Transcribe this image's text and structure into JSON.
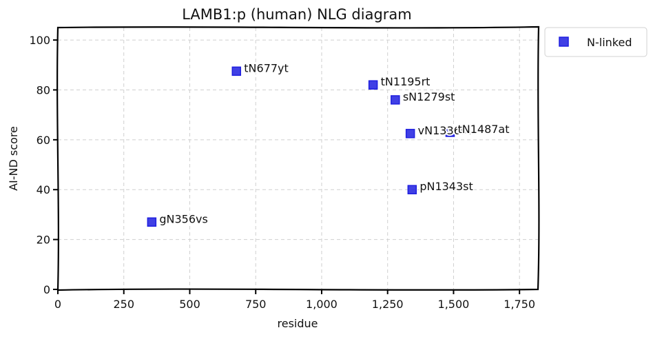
{
  "chart_data": {
    "type": "scatter",
    "title": "LAMB1:p (human) NLG diagram",
    "xlabel": "residue",
    "ylabel": "AI-ND score",
    "xlim": [
      0,
      1820
    ],
    "ylim": [
      0,
      105
    ],
    "x_ticks": [
      0,
      250,
      500,
      750,
      1000,
      1250,
      1500,
      1750
    ],
    "x_tick_labels": [
      "0",
      "250",
      "500",
      "750",
      "1,000",
      "1,250",
      "1,500",
      "1,750"
    ],
    "y_ticks": [
      0,
      20,
      40,
      60,
      80,
      100
    ],
    "y_tick_labels": [
      "0",
      "20",
      "40",
      "60",
      "80",
      "100"
    ],
    "grid": true,
    "legend_position": "outside-top-right",
    "series": [
      {
        "name": "N-linked",
        "color": "#1f1fe0",
        "marker": "square",
        "points": [
          {
            "x": 356,
            "y": 27,
            "label": "gN356vs"
          },
          {
            "x": 677,
            "y": 87.5,
            "label": "tN677yt"
          },
          {
            "x": 1195,
            "y": 82,
            "label": "tN1195rt"
          },
          {
            "x": 1279,
            "y": 76,
            "label": "sN1279st"
          },
          {
            "x": 1336,
            "y": 62.5,
            "label": "vN1336st"
          },
          {
            "x": 1343,
            "y": 40,
            "label": "pN1343st"
          },
          {
            "x": 1487,
            "y": 63,
            "label": "tN1487at"
          }
        ]
      }
    ]
  }
}
